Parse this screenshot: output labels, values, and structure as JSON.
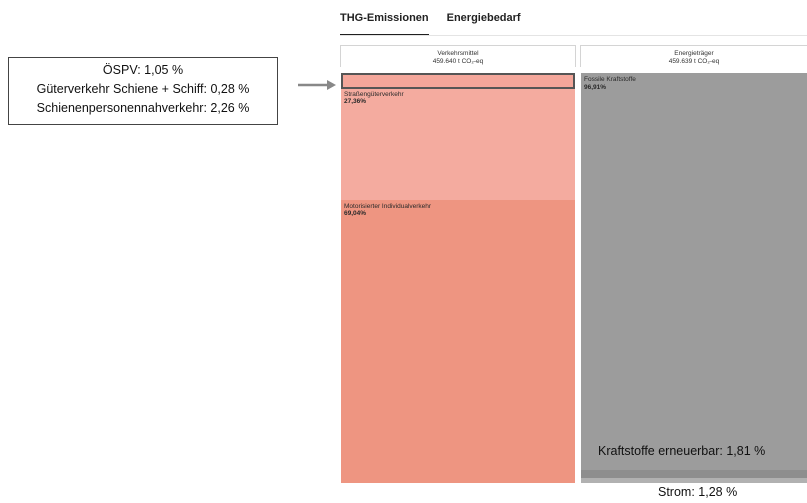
{
  "tabs": [
    {
      "label": "THG-Emissionen",
      "active": true
    },
    {
      "label": "Energiebedarf",
      "active": false
    }
  ],
  "callout": {
    "lines": [
      "ÖSPV: 1,05 %",
      "Güterverkehr Schiene + Schiff: 0,28 %",
      "Schienenpersonennahverkehr: 2,26 %"
    ]
  },
  "columns": {
    "verkehrsmittel": {
      "title": "Verkehrsmittel",
      "total": "459.640 t CO₂-eq",
      "segments": [
        {
          "name": "",
          "pct": "",
          "share": 0.0359,
          "color": "#f3a69a"
        },
        {
          "name": "Straßengüterverkehr",
          "pct": "27,36%",
          "share": 0.2736,
          "color": "#f4ab9f"
        },
        {
          "name": "Motorisierter Individualverkehr",
          "pct": "69,04%",
          "share": 0.6904,
          "color": "#ee9581"
        }
      ]
    },
    "energietraeger": {
      "title": "Energieträger",
      "total": "459.639 t CO₂-eq",
      "segments": [
        {
          "name": "Fossile Kraftstoffe",
          "pct": "96,91%",
          "share": 0.9691,
          "color": "#9c9c9c"
        },
        {
          "name": "",
          "pct": "",
          "share": 0.0181,
          "color": "#8e8e8e"
        },
        {
          "name": "",
          "pct": "",
          "share": 0.0128,
          "color": "#b1b1b1"
        }
      ]
    }
  },
  "annotations": {
    "kraftstoffe": "Kraftstoffe erneuerbar: 1,81 %",
    "strom": "Strom: 1,28 %"
  },
  "colors": {
    "accent_dark": "#1f1f1f"
  }
}
